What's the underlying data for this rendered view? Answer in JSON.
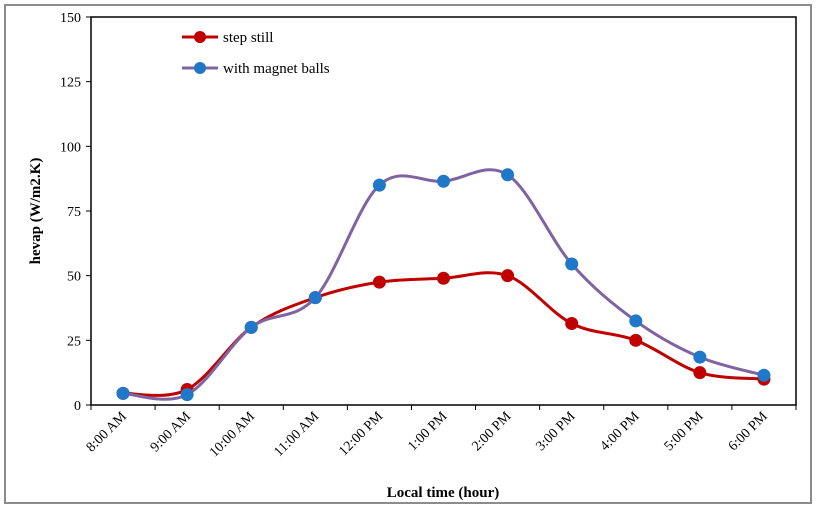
{
  "chart_data": {
    "type": "line",
    "title": "",
    "xlabel": "Local time (hour)",
    "ylabel": "hevap (W/m2.K)",
    "categories": [
      "8:00 AM",
      "9:00 AM",
      "10:00 AM",
      "11:00 AM",
      "12:00 PM",
      "1:00 PM",
      "2:00 PM",
      "3:00 PM",
      "4:00 PM",
      "5:00 PM",
      "6:00 PM"
    ],
    "ylim": [
      0,
      150
    ],
    "yticks": [
      "0",
      "25",
      "50",
      "75",
      "100",
      "125",
      "150"
    ],
    "grid": false,
    "legend_position": "top-left",
    "series": [
      {
        "name": "step still",
        "color": "#c00000",
        "values": [
          4.5,
          6,
          30,
          41.5,
          47.5,
          49,
          50,
          31.5,
          25,
          12.5,
          10
        ]
      },
      {
        "name": "with magnet balls",
        "color": "#8064a2",
        "marker_color": "#1f78c8",
        "values": [
          4.5,
          4,
          30,
          41.5,
          85,
          86.5,
          89,
          54.5,
          32.5,
          18.5,
          11.5
        ]
      }
    ]
  }
}
